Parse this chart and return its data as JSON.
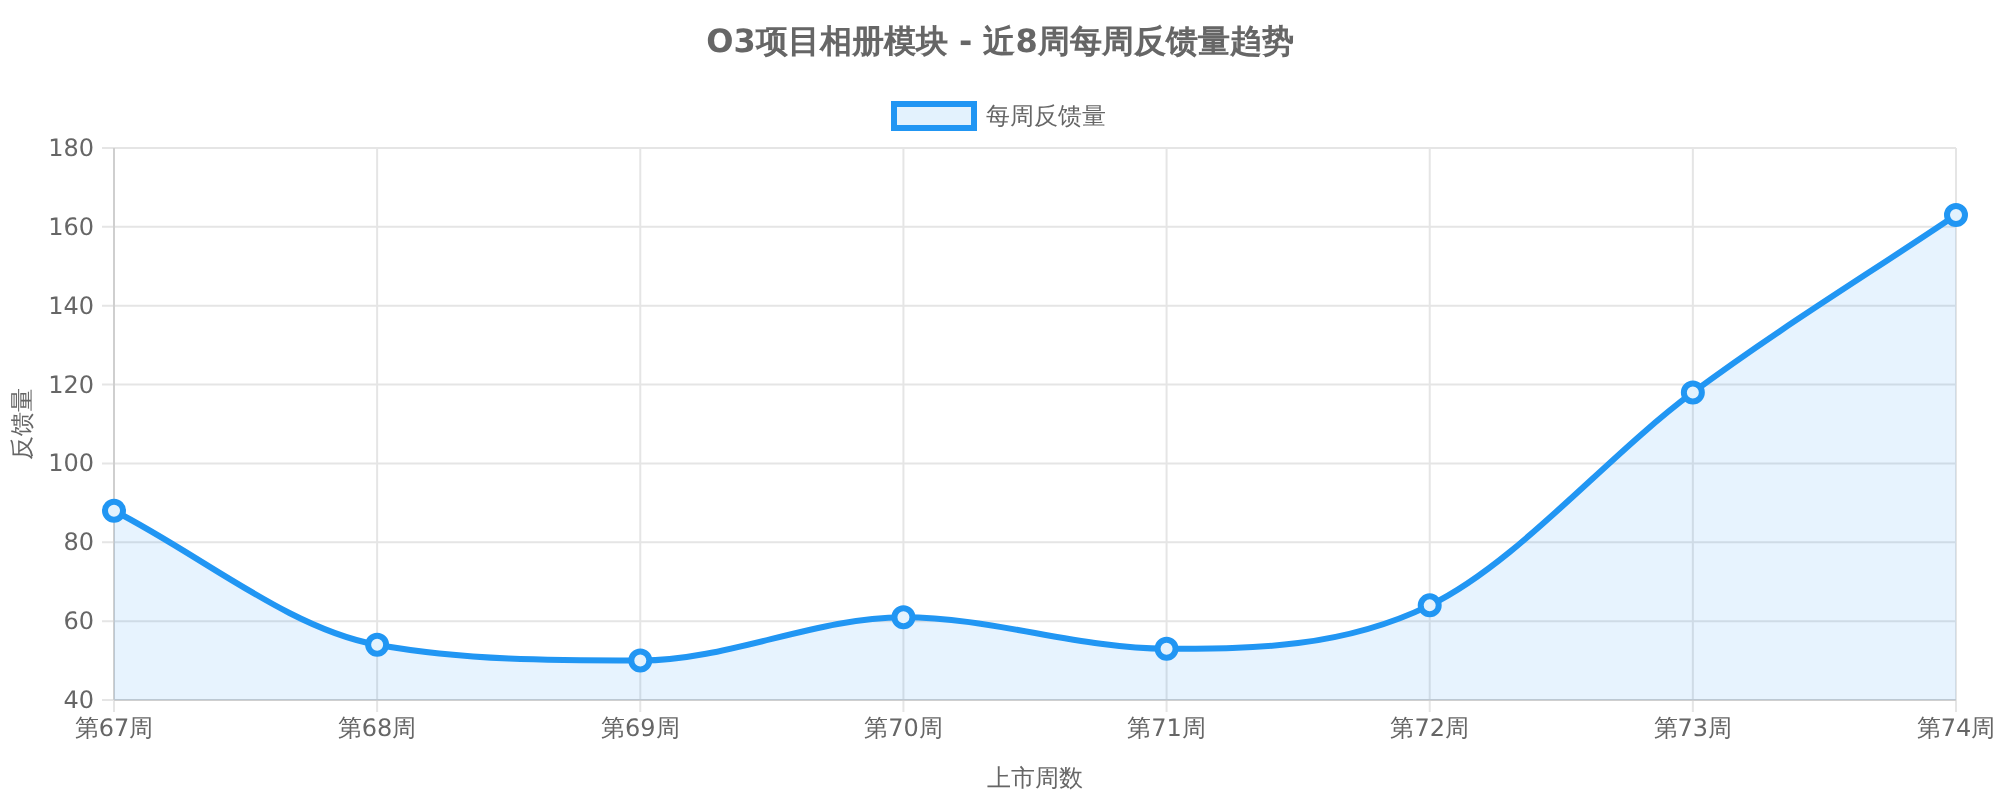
{
  "chart_data": {
    "type": "area",
    "title": "O3项目相册模块 - 近8周每周反馈量趋势",
    "xlabel": "上市周数",
    "ylabel": "反馈量",
    "categories": [
      "第67周",
      "第68周",
      "第69周",
      "第70周",
      "第71周",
      "第72周",
      "第73周",
      "第74周"
    ],
    "series": [
      {
        "name": "每周反馈量",
        "color": "#2196f3",
        "values": [
          88,
          54,
          50,
          61,
          53,
          64,
          118,
          163
        ]
      }
    ],
    "ylim": [
      40,
      180
    ],
    "yticks": [
      40,
      60,
      80,
      100,
      120,
      140,
      160,
      180
    ],
    "grid": true,
    "legend": "top",
    "marker": "circle",
    "line_style": "solid"
  }
}
